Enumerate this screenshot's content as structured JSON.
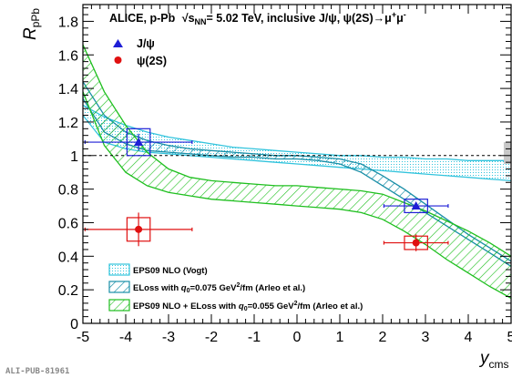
{
  "pub_id": "ALI-PUB-81961",
  "chart_data": {
    "type": "scatter",
    "title": {
      "prefix": "ALICE, p-Pb",
      "energy": "√s",
      "energy_sub": "NN",
      "energy_value": "= 5.02 TeV, inclusive J/ψ,  ψ(2S)→μ",
      "mu_plus": "+",
      "mu": "μ",
      "mu_minus": "-"
    },
    "xlabel": "y",
    "xlabel_sub": "cms",
    "ylabel": "R",
    "ylabel_sub": "pPb",
    "xlim": [
      -5,
      5
    ],
    "ylim": [
      0,
      1.9
    ],
    "x_ticks": [
      "-5",
      "-4",
      "-3",
      "-2",
      "-1",
      "0",
      "1",
      "2",
      "3",
      "4",
      "5"
    ],
    "y_ticks": [
      "0",
      "0.2",
      "0.4",
      "0.6",
      "0.8",
      "1",
      "1.2",
      "1.4",
      "1.6",
      "1.8"
    ],
    "reference_line": 1,
    "global_uncertainty": {
      "x": 4.85,
      "low": 0.95,
      "high": 1.08,
      "color": "#c8c8c8"
    },
    "series": [
      {
        "name": "J/ψ",
        "marker": "triangle",
        "color": "#1f1fd6",
        "points": [
          {
            "x": -3.7,
            "y": 1.08,
            "xerr": 1.25,
            "stat": 0.05,
            "syst": 0.08,
            "box_half_width": 0.27
          },
          {
            "x": 2.78,
            "y": 0.7,
            "xerr": 0.75,
            "stat": 0.02,
            "syst": 0.04,
            "box_half_width": 0.27
          }
        ]
      },
      {
        "name": "ψ(2S)",
        "marker": "circle",
        "color": "#e01010",
        "points": [
          {
            "x": -3.7,
            "y": 0.56,
            "xerr": 1.25,
            "stat": 0.1,
            "syst": 0.07,
            "box_half_width": 0.27
          },
          {
            "x": 2.78,
            "y": 0.48,
            "xerr": 0.75,
            "stat": 0.05,
            "syst": 0.04,
            "box_half_width": 0.27
          }
        ]
      }
    ],
    "models": [
      {
        "name": "EPS09 NLO (Vogt)",
        "fill": "dotted",
        "color": "#33c4dd",
        "x": [
          -5,
          -4.5,
          -4,
          -3.5,
          -3,
          -2.5,
          -2,
          -1.5,
          -1,
          -0.5,
          0,
          0.5,
          1,
          1.5,
          2,
          2.5,
          3,
          3.5,
          4,
          4.5,
          5
        ],
        "low": [
          1.24,
          1.08,
          1.04,
          1.02,
          1.01,
          1.0,
          0.99,
          0.98,
          0.97,
          0.96,
          0.95,
          0.94,
          0.93,
          0.92,
          0.91,
          0.9,
          0.89,
          0.88,
          0.87,
          0.86,
          0.85
        ],
        "high": [
          1.3,
          1.23,
          1.18,
          1.14,
          1.11,
          1.09,
          1.07,
          1.05,
          1.04,
          1.03,
          1.02,
          1.01,
          1.0,
          1.0,
          0.99,
          0.99,
          0.98,
          0.98,
          0.97,
          0.97,
          0.97
        ]
      },
      {
        "name": "ELoss with",
        "name_q": "q",
        "name_q_sub": "0",
        "name_value": "=0.075 GeV",
        "name_sup": "2",
        "name_tail": "/fm (Arleo et al.)",
        "fill": "hatched",
        "color": "#1a8fa8",
        "x": [
          -5,
          -4.5,
          -4,
          -3.5,
          -3,
          -2.5,
          -2,
          -1.5,
          -1,
          -0.5,
          0,
          0.5,
          1,
          1.5,
          2,
          2.5,
          3,
          3.5,
          4,
          4.5,
          5
        ],
        "low": [
          1.34,
          1.14,
          1.07,
          1.03,
          1.02,
          1.01,
          1.0,
          0.99,
          0.99,
          0.98,
          0.98,
          0.97,
          0.95,
          0.9,
          0.82,
          0.74,
          0.66,
          0.58,
          0.5,
          0.42,
          0.34
        ],
        "high": [
          1.44,
          1.24,
          1.14,
          1.09,
          1.06,
          1.04,
          1.03,
          1.02,
          1.01,
          1.0,
          1.0,
          0.99,
          0.98,
          0.95,
          0.88,
          0.8,
          0.71,
          0.62,
          0.53,
          0.45,
          0.37
        ]
      },
      {
        "name": "EPS09 NLO + ELoss with",
        "name_q": "q",
        "name_q_sub": "0",
        "name_value": "=0.055 GeV",
        "name_sup": "2",
        "name_tail": "/fm (Arleo et al.)",
        "fill": "hatched",
        "color": "#1fbf1f",
        "x": [
          -5,
          -4.5,
          -4,
          -3.5,
          -3,
          -2.5,
          -2,
          -1.5,
          -1,
          -0.5,
          0,
          0.5,
          1,
          1.5,
          2,
          2.5,
          3,
          3.5,
          4,
          4.5,
          5
        ],
        "low": [
          1.38,
          1.06,
          0.9,
          0.82,
          0.78,
          0.76,
          0.74,
          0.73,
          0.72,
          0.71,
          0.7,
          0.69,
          0.68,
          0.66,
          0.62,
          0.55,
          0.47,
          0.38,
          0.3,
          0.22,
          0.15
        ],
        "high": [
          1.66,
          1.38,
          1.18,
          1.02,
          0.92,
          0.87,
          0.85,
          0.84,
          0.83,
          0.82,
          0.82,
          0.81,
          0.8,
          0.79,
          0.77,
          0.72,
          0.67,
          0.61,
          0.55,
          0.48,
          0.4
        ]
      }
    ]
  }
}
